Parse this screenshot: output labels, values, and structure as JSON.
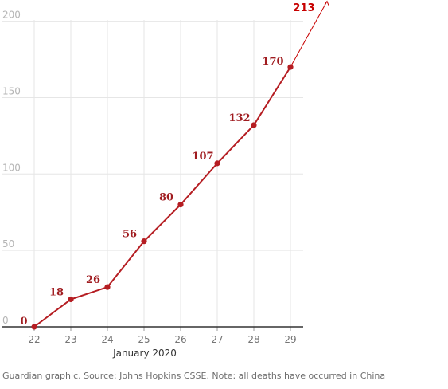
{
  "chart_data": {
    "type": "line",
    "x": [
      "22",
      "23",
      "24",
      "25",
      "26",
      "27",
      "28",
      "29"
    ],
    "xlabel": "January 2020",
    "values": [
      0,
      18,
      26,
      56,
      80,
      107,
      132,
      170
    ],
    "projected": {
      "label": "213",
      "value": 213
    },
    "ylim": [
      0,
      200
    ],
    "yticks": [
      0,
      50,
      100,
      150,
      200
    ],
    "grid": true,
    "colors": {
      "line": "#b51d22",
      "projection": "#c70000",
      "grid": "#e6e6e6",
      "axis": "#333333"
    }
  },
  "source": "Guardian graphic. Source: Johns Hopkins CSSE. Note: all deaths have occurred in China"
}
